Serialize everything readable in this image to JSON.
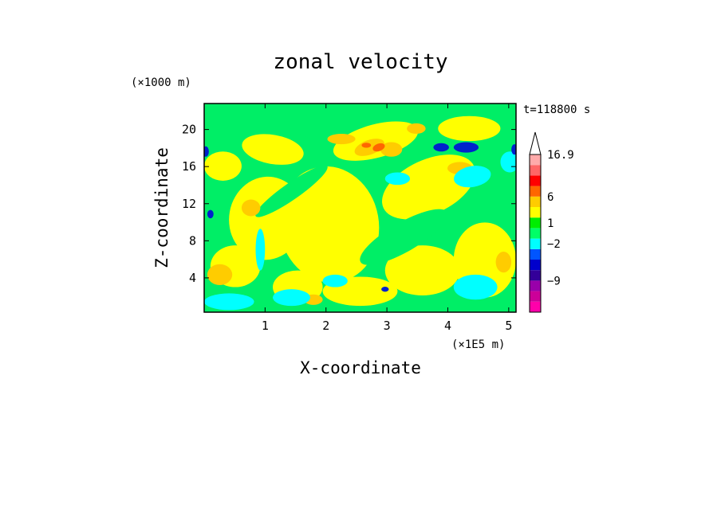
{
  "chart_data": {
    "type": "heatmap",
    "title": "zonal velocity",
    "xlabel": "X-coordinate",
    "ylabel": "Z-coordinate",
    "x_unit": "(×1E5 m)",
    "y_unit": "(×1000 m)",
    "time_label": "t=118800 s",
    "xlim": [
      0,
      5.12
    ],
    "ylim": [
      0.3,
      22.8
    ],
    "xticks": [
      1,
      2,
      3,
      4,
      5
    ],
    "yticks": [
      4,
      8,
      12,
      16,
      20
    ],
    "grid": false,
    "colorbar": {
      "placement": "right",
      "labels": [
        "16.9",
        "6",
        "1",
        "-2",
        "-9"
      ],
      "label_text": [
        "16.9",
        "6",
        "1",
        "−2",
        "−9"
      ],
      "levels": [
        -16,
        -12,
        -9,
        -6,
        -3,
        -2,
        -1,
        0,
        1,
        2,
        3,
        6,
        9,
        12,
        16.9
      ],
      "colors": [
        "#ff00aa",
        "#cc0099",
        "#9900aa",
        "#330099",
        "#0000cc",
        "#0055ff",
        "#00ffff",
        "#00ff66",
        "#00ee00",
        "#ffff00",
        "#ffcc00",
        "#ff6600",
        "#ff0000",
        "#ff6666",
        "#ffaaaa"
      ]
    },
    "palette": {
      "strong_negative": "#0022cc",
      "negative": "#00ffff",
      "near_zero": "#00ee66",
      "weak_positive": "#ffff00",
      "positive": "#ffcc00",
      "strong_positive": "#ff6600"
    }
  }
}
